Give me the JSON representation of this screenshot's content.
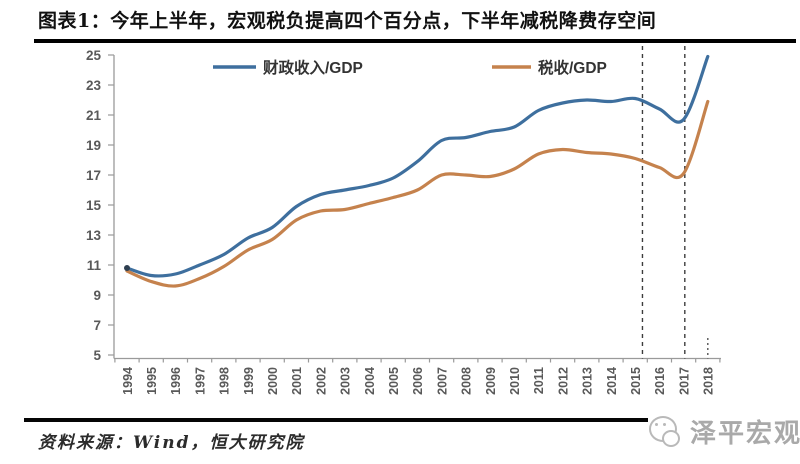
{
  "header": {
    "title": "图表1：今年上半年，宏观税负提高四个百分点，下半年减税降费存空间"
  },
  "chart_data": {
    "type": "line",
    "title": "图表1：今年上半年，宏观税负提高四个百分点，下半年减税降费存空间",
    "x": [
      1994,
      1995,
      1996,
      1997,
      1998,
      1999,
      2000,
      2001,
      2002,
      2003,
      2004,
      2005,
      2006,
      2007,
      2008,
      2009,
      2010,
      2011,
      2012,
      2013,
      2014,
      2015,
      2016,
      2017,
      2018
    ],
    "series": [
      {
        "key": "fiscal-revenue",
        "name": "财政收入/GDP",
        "color": "#3e6f9e",
        "values": [
          10.8,
          10.3,
          10.4,
          11.0,
          11.7,
          12.8,
          13.5,
          14.9,
          15.7,
          16.0,
          16.3,
          16.8,
          17.9,
          19.3,
          19.5,
          19.9,
          20.2,
          21.3,
          21.8,
          22.0,
          21.9,
          22.1,
          21.4,
          20.7,
          24.9
        ]
      },
      {
        "key": "tax",
        "name": "税收/GDP",
        "color": "#c5824d",
        "values": [
          10.6,
          9.9,
          9.6,
          10.1,
          10.9,
          12.0,
          12.7,
          14.0,
          14.6,
          14.7,
          15.1,
          15.5,
          16.0,
          17.0,
          17.0,
          16.9,
          17.4,
          18.4,
          18.7,
          18.5,
          18.4,
          18.1,
          17.5,
          17.1,
          21.9
        ]
      }
    ],
    "xlabel": "",
    "ylabel": "",
    "ylim": [
      5,
      25
    ],
    "ytick_step": 2,
    "grid": false,
    "legend_position": "top-center",
    "axis_color": "#9a9a9a",
    "tick_label_color": "#595959",
    "annotations": {
      "dashed_vlines_x": [
        2015.3,
        2017.05
      ],
      "dotted_vline_x": 2018
    }
  },
  "footer": {
    "source": "资料来源：Wind，恒大研究院"
  },
  "logo": {
    "text": "泽平宏观"
  }
}
